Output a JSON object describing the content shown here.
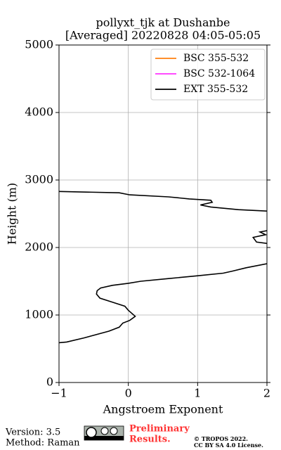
{
  "chart_data": {
    "type": "line",
    "orientation": "vertical-profile",
    "title": "pollyxt_tjk at Dushanbe",
    "subtitle": "[Averaged] 20220828 04:05-05:05",
    "x_label": "Angstroem Exponent",
    "y_label": "Height (m)",
    "xlim": [
      -1,
      2
    ],
    "ylim": [
      0,
      5000
    ],
    "xticks": [
      {
        "value": -1,
        "label": "−1"
      },
      0,
      1,
      2
    ],
    "yticks": [
      0,
      1000,
      2000,
      3000,
      4000,
      5000
    ],
    "grid": true,
    "legend": "upper right",
    "y": [
      2830,
      2810,
      2780,
      2750,
      2720,
      2700,
      2670,
      2630,
      2600,
      2560,
      2540,
      2400,
      2250,
      2230,
      2190,
      2150,
      2080,
      2060,
      1900,
      1760,
      1700,
      1650,
      1620,
      1580,
      1540,
      1500,
      1470,
      1440,
      1400,
      1360,
      1310,
      1250,
      1190,
      1130,
      1070,
      980,
      920,
      880,
      820,
      760,
      660,
      600,
      590
    ],
    "series": [
      {
        "name": "BSC 355-532",
        "color": "#ff7f0e",
        "values": [
          null,
          null,
          null,
          null,
          null,
          null,
          null,
          null,
          null,
          null,
          null,
          null,
          null,
          null,
          null,
          null,
          null,
          null,
          null,
          null,
          null,
          null,
          null,
          null,
          null,
          null,
          null,
          null,
          null,
          null,
          null,
          null,
          null,
          null,
          null,
          null,
          null,
          null,
          null,
          null,
          null,
          null,
          null
        ]
      },
      {
        "name": "BSC 532-1064",
        "color": "#ff33ff",
        "values": [
          null,
          null,
          null,
          null,
          null,
          null,
          null,
          null,
          null,
          null,
          null,
          null,
          null,
          null,
          null,
          null,
          null,
          null,
          null,
          null,
          null,
          null,
          null,
          null,
          null,
          null,
          null,
          null,
          null,
          null,
          null,
          null,
          null,
          null,
          null,
          null,
          null,
          null,
          null,
          null,
          null,
          null,
          null
        ]
      },
      {
        "name": "EXT 355-532",
        "color": "#000000",
        "values": [
          -1,
          -0.13,
          0.02,
          0.58,
          0.88,
          1.19,
          1.21,
          1.04,
          1.19,
          1.59,
          2.0,
          null,
          2.0,
          1.9,
          1.98,
          1.8,
          1.85,
          2.0,
          null,
          2.0,
          1.7,
          1.5,
          1.37,
          0.99,
          0.58,
          0.18,
          0.0,
          -0.23,
          -0.4,
          -0.45,
          -0.46,
          -0.41,
          -0.23,
          -0.05,
          0.0,
          0.1,
          0.02,
          -0.08,
          -0.13,
          -0.28,
          -0.64,
          -0.89,
          -1
        ]
      }
    ]
  },
  "footer": {
    "version": "Version: 3.5",
    "method": "Method: Raman",
    "status": [
      "Preliminary",
      "Results."
    ],
    "copyright": "© TROPOS 2022.",
    "license": "CC BY SA 4.0 License."
  }
}
